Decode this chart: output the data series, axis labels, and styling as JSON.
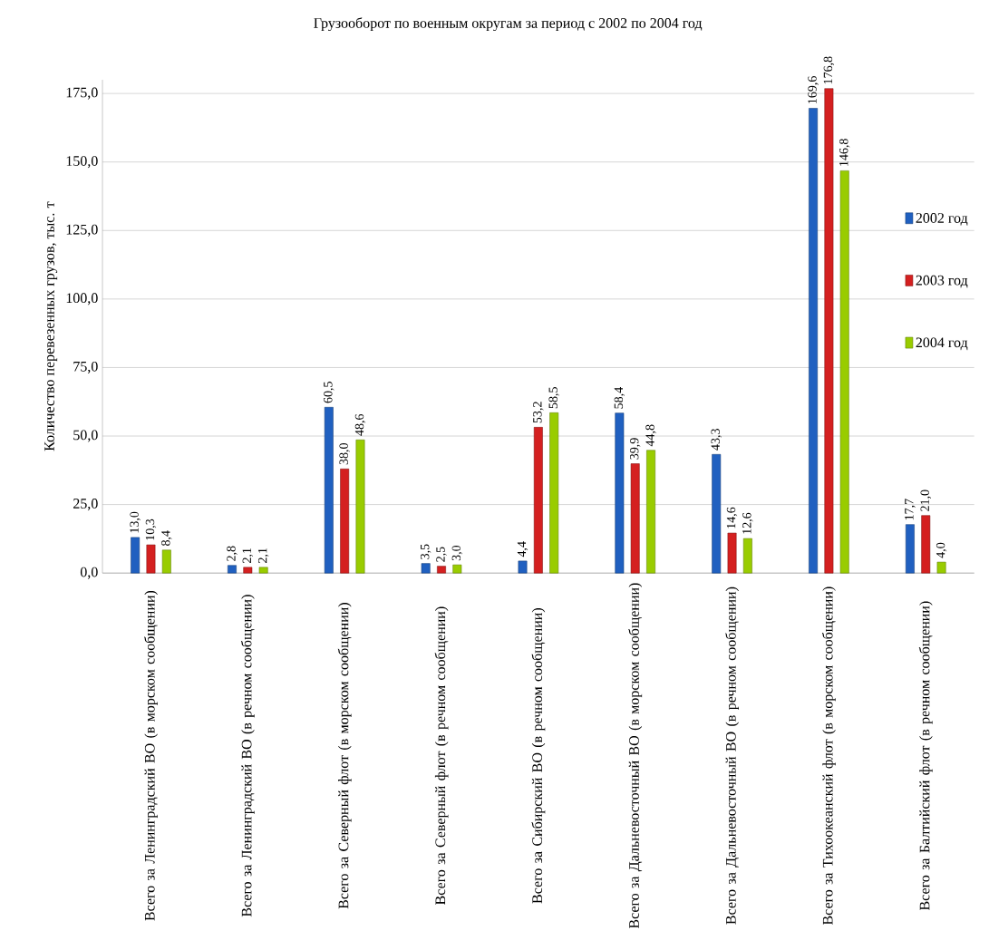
{
  "chart_data": {
    "type": "bar",
    "title": "Грузооборот по военным округам за период с 2002 по 2004 год",
    "ylabel": "Количество перевезенных грузов, тыс. т",
    "categories": [
      "Всего за Ленинградский ВО (в морском сообщении)",
      "Всего за Ленинградский ВО (в речном сообщении)",
      "Всего за Северный флот (в морском сообщении)",
      "Всего за Северный флот (в речном сообщении)",
      "Всего за Сибирский ВО (в речном сообщении)",
      "Всего за Дальневосточный ВО (в морском сообщении)",
      "Всего за Дальневосточный ВО (в речном сообщении)",
      "Всего за Тихоокеанский флот (в морском сообщении)",
      "Всего за Балтийский флот (в речном сообщении)"
    ],
    "series": [
      {
        "name": "2002 год",
        "color": "#2060c0",
        "values": [
          13.0,
          2.8,
          60.5,
          3.5,
          4.4,
          58.4,
          43.3,
          169.6,
          17.7
        ],
        "value_labels": [
          "13,0",
          "2,8",
          "60,5",
          "3,5",
          "4,4",
          "58,4",
          "43,3",
          "169,6",
          "17,7"
        ]
      },
      {
        "name": "2003 год",
        "color": "#d42020",
        "values": [
          10.3,
          2.1,
          38.0,
          2.5,
          53.2,
          39.9,
          14.6,
          176.8,
          21.0
        ],
        "value_labels": [
          "10,3",
          "2,1",
          "38,0",
          "2,5",
          "53,2",
          "39,9",
          "14,6",
          "176,8",
          "21,0"
        ]
      },
      {
        "name": "2004 год",
        "color": "#99cc00",
        "values": [
          8.4,
          2.1,
          48.6,
          3.0,
          58.5,
          44.8,
          12.6,
          146.8,
          4.0
        ],
        "value_labels": [
          "8,4",
          "2,1",
          "48,6",
          "3,0",
          "58,5",
          "44,8",
          "12,6",
          "146,8",
          "4,0"
        ]
      }
    ],
    "ylim": [
      0,
      180
    ],
    "yticks": [
      {
        "value": 0,
        "label": "0,0"
      },
      {
        "value": 25,
        "label": "25,0"
      },
      {
        "value": 50,
        "label": "50,0"
      },
      {
        "value": 75,
        "label": "75,0"
      },
      {
        "value": 100,
        "label": "100,0"
      },
      {
        "value": 125,
        "label": "125,0"
      },
      {
        "value": 150,
        "label": "150,0"
      },
      {
        "value": 175,
        "label": "175,0"
      }
    ],
    "grid": "y",
    "legend": "right"
  }
}
